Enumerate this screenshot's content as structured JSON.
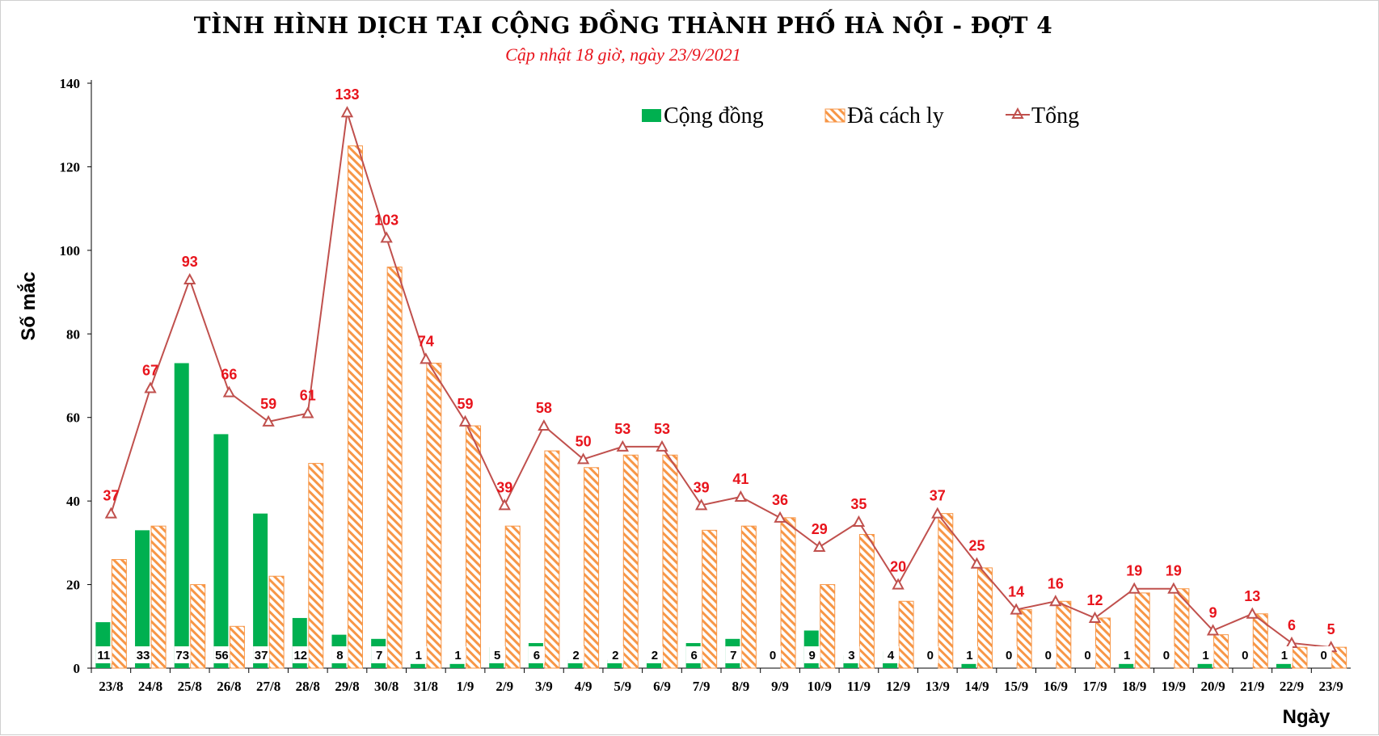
{
  "chart_data": {
    "type": "bar",
    "title": "TÌNH HÌNH DỊCH TẠI CỘNG ĐỒNG THÀNH PHỐ HÀ NỘI - ĐỢT 4",
    "subtitle": "Cập nhật 18 giờ, ngày 23/9/2021",
    "xlabel": "Ngày",
    "ylabel": "Số mắc",
    "ylim": [
      0,
      140
    ],
    "yticks": [
      0,
      20,
      40,
      60,
      80,
      100,
      120,
      140
    ],
    "grid": false,
    "legend_position": "top-right",
    "categories": [
      "23/8",
      "24/8",
      "25/8",
      "26/8",
      "27/8",
      "28/8",
      "29/8",
      "30/8",
      "31/8",
      "1/9",
      "2/9",
      "3/9",
      "4/9",
      "5/9",
      "6/9",
      "7/9",
      "8/9",
      "9/9",
      "10/9",
      "11/9",
      "12/9",
      "13/9",
      "14/9",
      "15/9",
      "16/9",
      "17/9",
      "18/9",
      "19/9",
      "20/9",
      "21/9",
      "22/9",
      "23/9"
    ],
    "series": [
      {
        "name": "Cộng đồng",
        "type": "bar",
        "color": "#00b050",
        "values": [
          11,
          33,
          73,
          56,
          37,
          12,
          8,
          7,
          1,
          1,
          5,
          6,
          2,
          2,
          2,
          6,
          7,
          0,
          9,
          3,
          4,
          0,
          1,
          0,
          0,
          0,
          1,
          0,
          1,
          0,
          1,
          0
        ]
      },
      {
        "name": "Đã cách ly",
        "type": "bar",
        "color": "#f79646",
        "pattern": "diagonal-hatch",
        "values": [
          26,
          34,
          20,
          10,
          22,
          49,
          125,
          96,
          73,
          58,
          34,
          52,
          48,
          51,
          51,
          33,
          34,
          36,
          20,
          32,
          16,
          37,
          24,
          14,
          16,
          12,
          18,
          19,
          8,
          13,
          5,
          5
        ]
      },
      {
        "name": "Tổng",
        "type": "line",
        "color": "#c0504d",
        "marker": "triangle",
        "values": [
          37,
          67,
          93,
          66,
          59,
          61,
          133,
          103,
          74,
          59,
          39,
          58,
          50,
          53,
          53,
          39,
          41,
          36,
          29,
          35,
          20,
          37,
          25,
          14,
          16,
          12,
          19,
          19,
          9,
          13,
          6,
          5
        ]
      }
    ]
  }
}
